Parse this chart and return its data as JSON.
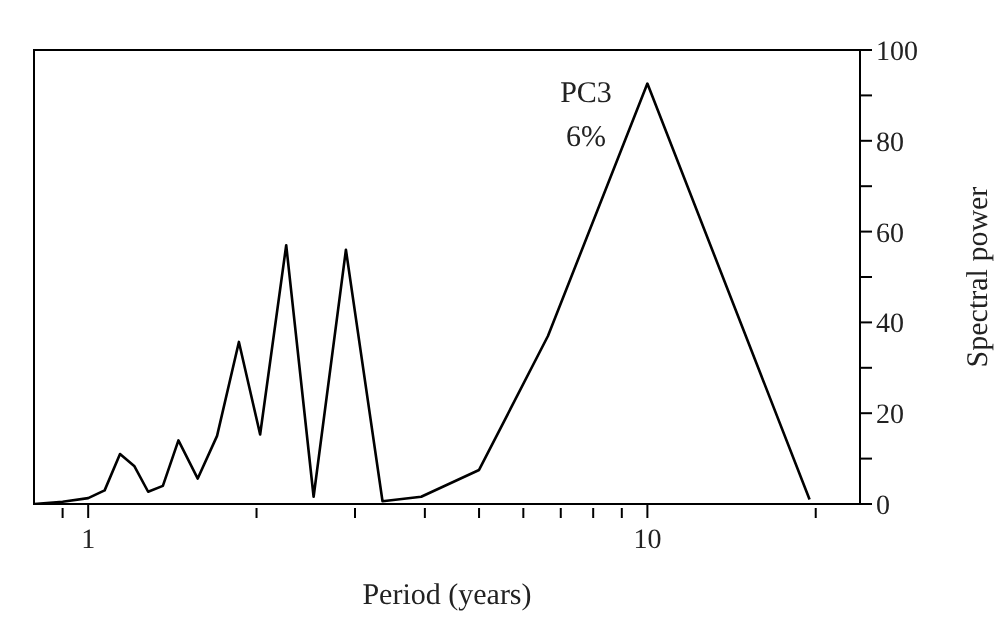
{
  "chart_data": {
    "type": "line",
    "xlabel": "Period (years)",
    "ylabel": "Spectral power",
    "annotations": [
      "PC3",
      "6%"
    ],
    "x": [
      0.8,
      0.9,
      1.0,
      1.07,
      1.14,
      1.21,
      1.28,
      1.36,
      1.45,
      1.57,
      1.7,
      1.86,
      2.03,
      2.26,
      2.53,
      2.89,
      3.36,
      3.94,
      5.0,
      6.64,
      10.0,
      19.5
    ],
    "series": [
      {
        "color": "#000000",
        "values": [
          0,
          0.5,
          1.3,
          3,
          11,
          8.3,
          2.7,
          4,
          14,
          5.6,
          15,
          35.7,
          15.3,
          57,
          1.6,
          56,
          0.6,
          1.6,
          7.5,
          37,
          92.6,
          1
        ]
      }
    ],
    "xlim": [
      0.8,
      24
    ],
    "xticks": [
      {
        "value": 0.9,
        "label": null
      },
      1,
      {
        "value": 2,
        "label": null
      },
      {
        "value": 3,
        "label": null
      },
      {
        "value": 4,
        "label": null
      },
      {
        "value": 5,
        "label": null
      },
      {
        "value": 6,
        "label": null
      },
      {
        "value": 7,
        "label": null
      },
      {
        "value": 8,
        "label": null
      },
      {
        "value": 9,
        "label": null
      },
      10,
      {
        "value": 20,
        "label": null
      }
    ],
    "ylim": [
      0,
      100
    ],
    "yticks": [
      0,
      {
        "value": 10,
        "label": null
      },
      20,
      {
        "value": 30,
        "label": null
      },
      40,
      {
        "value": 50,
        "label": null
      },
      60,
      {
        "value": 70,
        "label": null
      },
      80,
      {
        "value": 90,
        "label": null
      },
      100
    ],
    "log": "x",
    "grid": false,
    "legend": false,
    "marker": "none",
    "line_style": "solid"
  }
}
